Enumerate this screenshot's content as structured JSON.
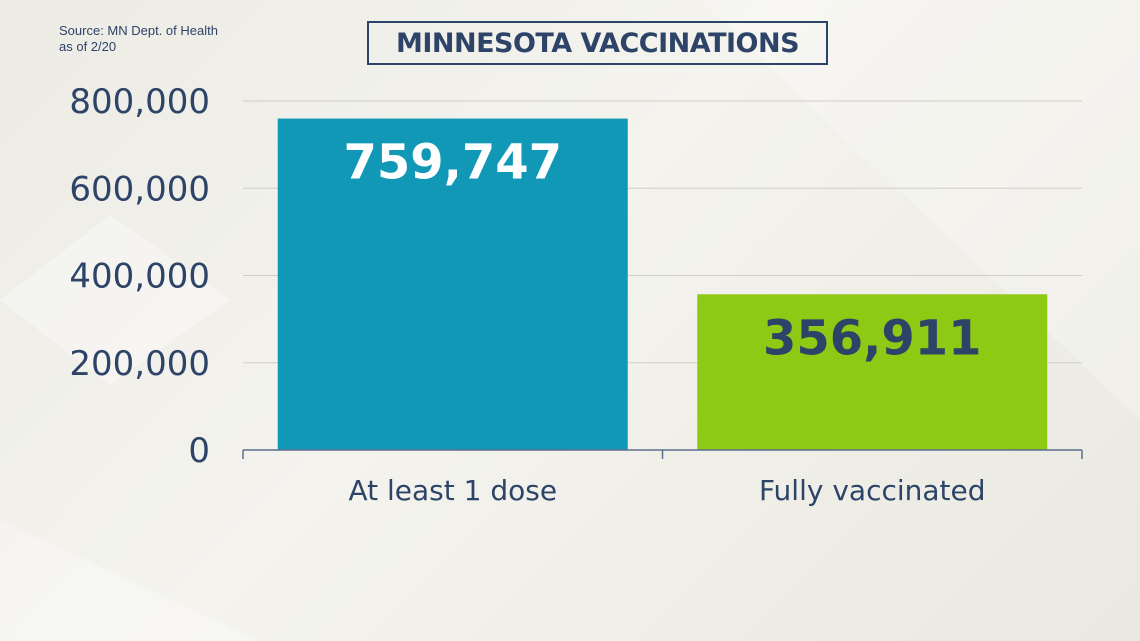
{
  "source": {
    "line1": "Source: MN Dept. of Health",
    "line2": "as of 2/20"
  },
  "colors": {
    "text": "#2d4468",
    "grid": "#cfcdc5",
    "axis": "#5a6f8e",
    "bar1": "#1198b6",
    "bar2": "#8ec914",
    "label_on_bar1": "#ffffff",
    "label_on_bar2": "#2d4468"
  },
  "chart_data": {
    "type": "bar",
    "title": "MINNESOTA VACCINATIONS",
    "categories": [
      "At least 1 dose",
      "Fully vaccinated"
    ],
    "values": [
      759747,
      356911
    ],
    "data_labels": [
      "759,747",
      "356,911"
    ],
    "ylim": [
      0,
      800000
    ],
    "yticks": [
      0,
      200000,
      400000,
      600000,
      800000
    ],
    "ytick_labels": [
      "0",
      "200,000",
      "400,000",
      "600,000",
      "800,000"
    ],
    "xlabel": "",
    "ylabel": "",
    "grid": true,
    "legend": false
  }
}
